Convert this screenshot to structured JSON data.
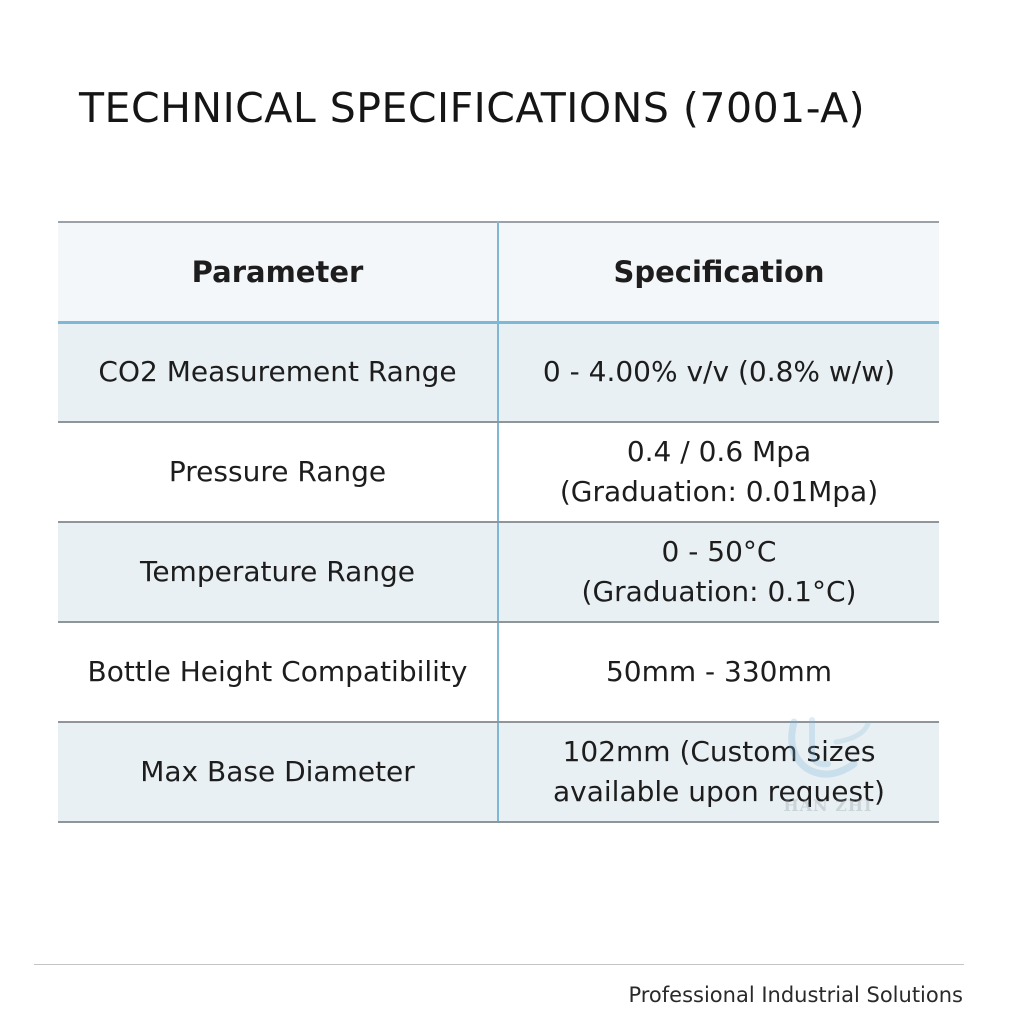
{
  "title": "TECHNICAL SPECIFICATIONS (7001-A)",
  "table": {
    "headers": [
      "Parameter",
      "Specification"
    ],
    "rows": [
      {
        "parameter": "CO2 Measurement Range",
        "spec": [
          "0 - 4.00% v/v (0.8% w/w)"
        ]
      },
      {
        "parameter": "Pressure Range",
        "spec": [
          "0.4 / 0.6 Mpa",
          "(Graduation: 0.01Mpa)"
        ]
      },
      {
        "parameter": "Temperature Range",
        "spec": [
          "0 - 50°C",
          "(Graduation: 0.1°C)"
        ]
      },
      {
        "parameter": "Bottle Height Compatibility",
        "spec": [
          "50mm - 330mm"
        ]
      },
      {
        "parameter": "Max Base Diameter",
        "spec": [
          "102mm (Custom sizes",
          "available upon request)"
        ]
      }
    ]
  },
  "watermark": {
    "text": "HAN ZHI",
    "icon": "logo-watermark-icon"
  },
  "footer": {
    "text": "Professional Industrial Solutions"
  }
}
